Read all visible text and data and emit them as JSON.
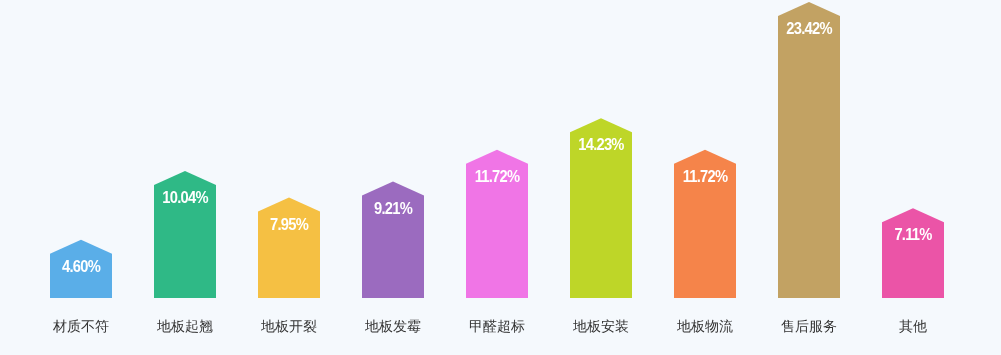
{
  "chart_data": {
    "type": "bar",
    "categories": [
      "材质不符",
      "地板起翘",
      "地板开裂",
      "地板发霉",
      "甲醛超标",
      "地板安装",
      "地板物流",
      "售后服务",
      "其他"
    ],
    "values": [
      4.6,
      10.04,
      7.95,
      9.21,
      11.72,
      14.23,
      11.72,
      23.42,
      7.11
    ],
    "value_labels": [
      "4.60%",
      "10.04%",
      "7.95%",
      "9.21%",
      "11.72%",
      "14.23%",
      "11.72%",
      "23.42%",
      "7.11%"
    ],
    "colors": [
      "#5aaee8",
      "#2fb986",
      "#f5c043",
      "#9b6bbf",
      "#f075e6",
      "#bed628",
      "#f5844a",
      "#c2a263",
      "#eb54a7"
    ],
    "data_labels": false
  }
}
